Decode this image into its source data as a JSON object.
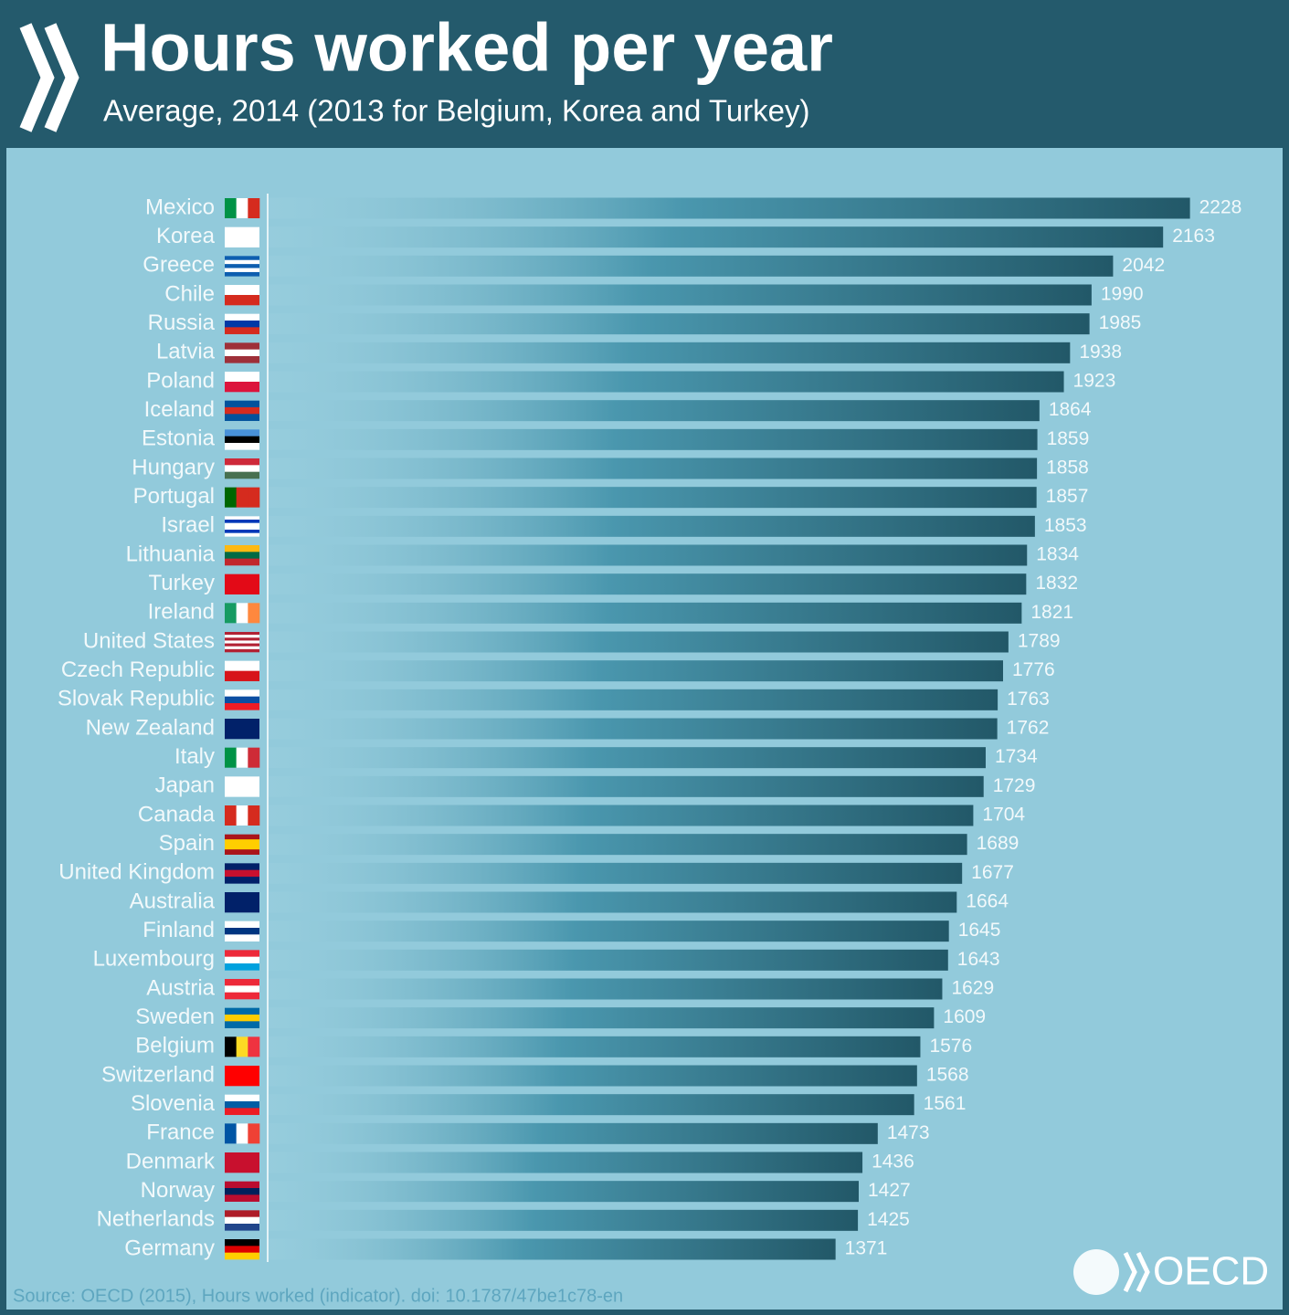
{
  "chart_data": {
    "type": "bar",
    "orientation": "horizontal",
    "title": "Hours worked per year",
    "subtitle": "Average, 2014 (2013 for Belgium, Korea and Turkey)",
    "categories": [
      "Mexico",
      "Korea",
      "Greece",
      "Chile",
      "Russia",
      "Latvia",
      "Poland",
      "Iceland",
      "Estonia",
      "Hungary",
      "Portugal",
      "Israel",
      "Lithuania",
      "Turkey",
      "Ireland",
      "United States",
      "Czech Republic",
      "Slovak Republic",
      "New Zealand",
      "Italy",
      "Japan",
      "Canada",
      "Spain",
      "United Kingdom",
      "Australia",
      "Finland",
      "Luxembourg",
      "Austria",
      "Sweden",
      "Belgium",
      "Switzerland",
      "Slovenia",
      "France",
      "Denmark",
      "Norway",
      "Netherlands",
      "Germany"
    ],
    "values": [
      2228,
      2163,
      2042,
      1990,
      1985,
      1938,
      1923,
      1864,
      1859,
      1858,
      1857,
      1853,
      1834,
      1832,
      1821,
      1789,
      1776,
      1763,
      1762,
      1734,
      1729,
      1704,
      1689,
      1677,
      1664,
      1645,
      1643,
      1629,
      1609,
      1576,
      1568,
      1561,
      1473,
      1436,
      1427,
      1425,
      1371
    ],
    "source": "Source: OECD (2015), Hours worked (indicator). doi: 10.1787/47be1c78-en",
    "logo": "OECD"
  }
}
